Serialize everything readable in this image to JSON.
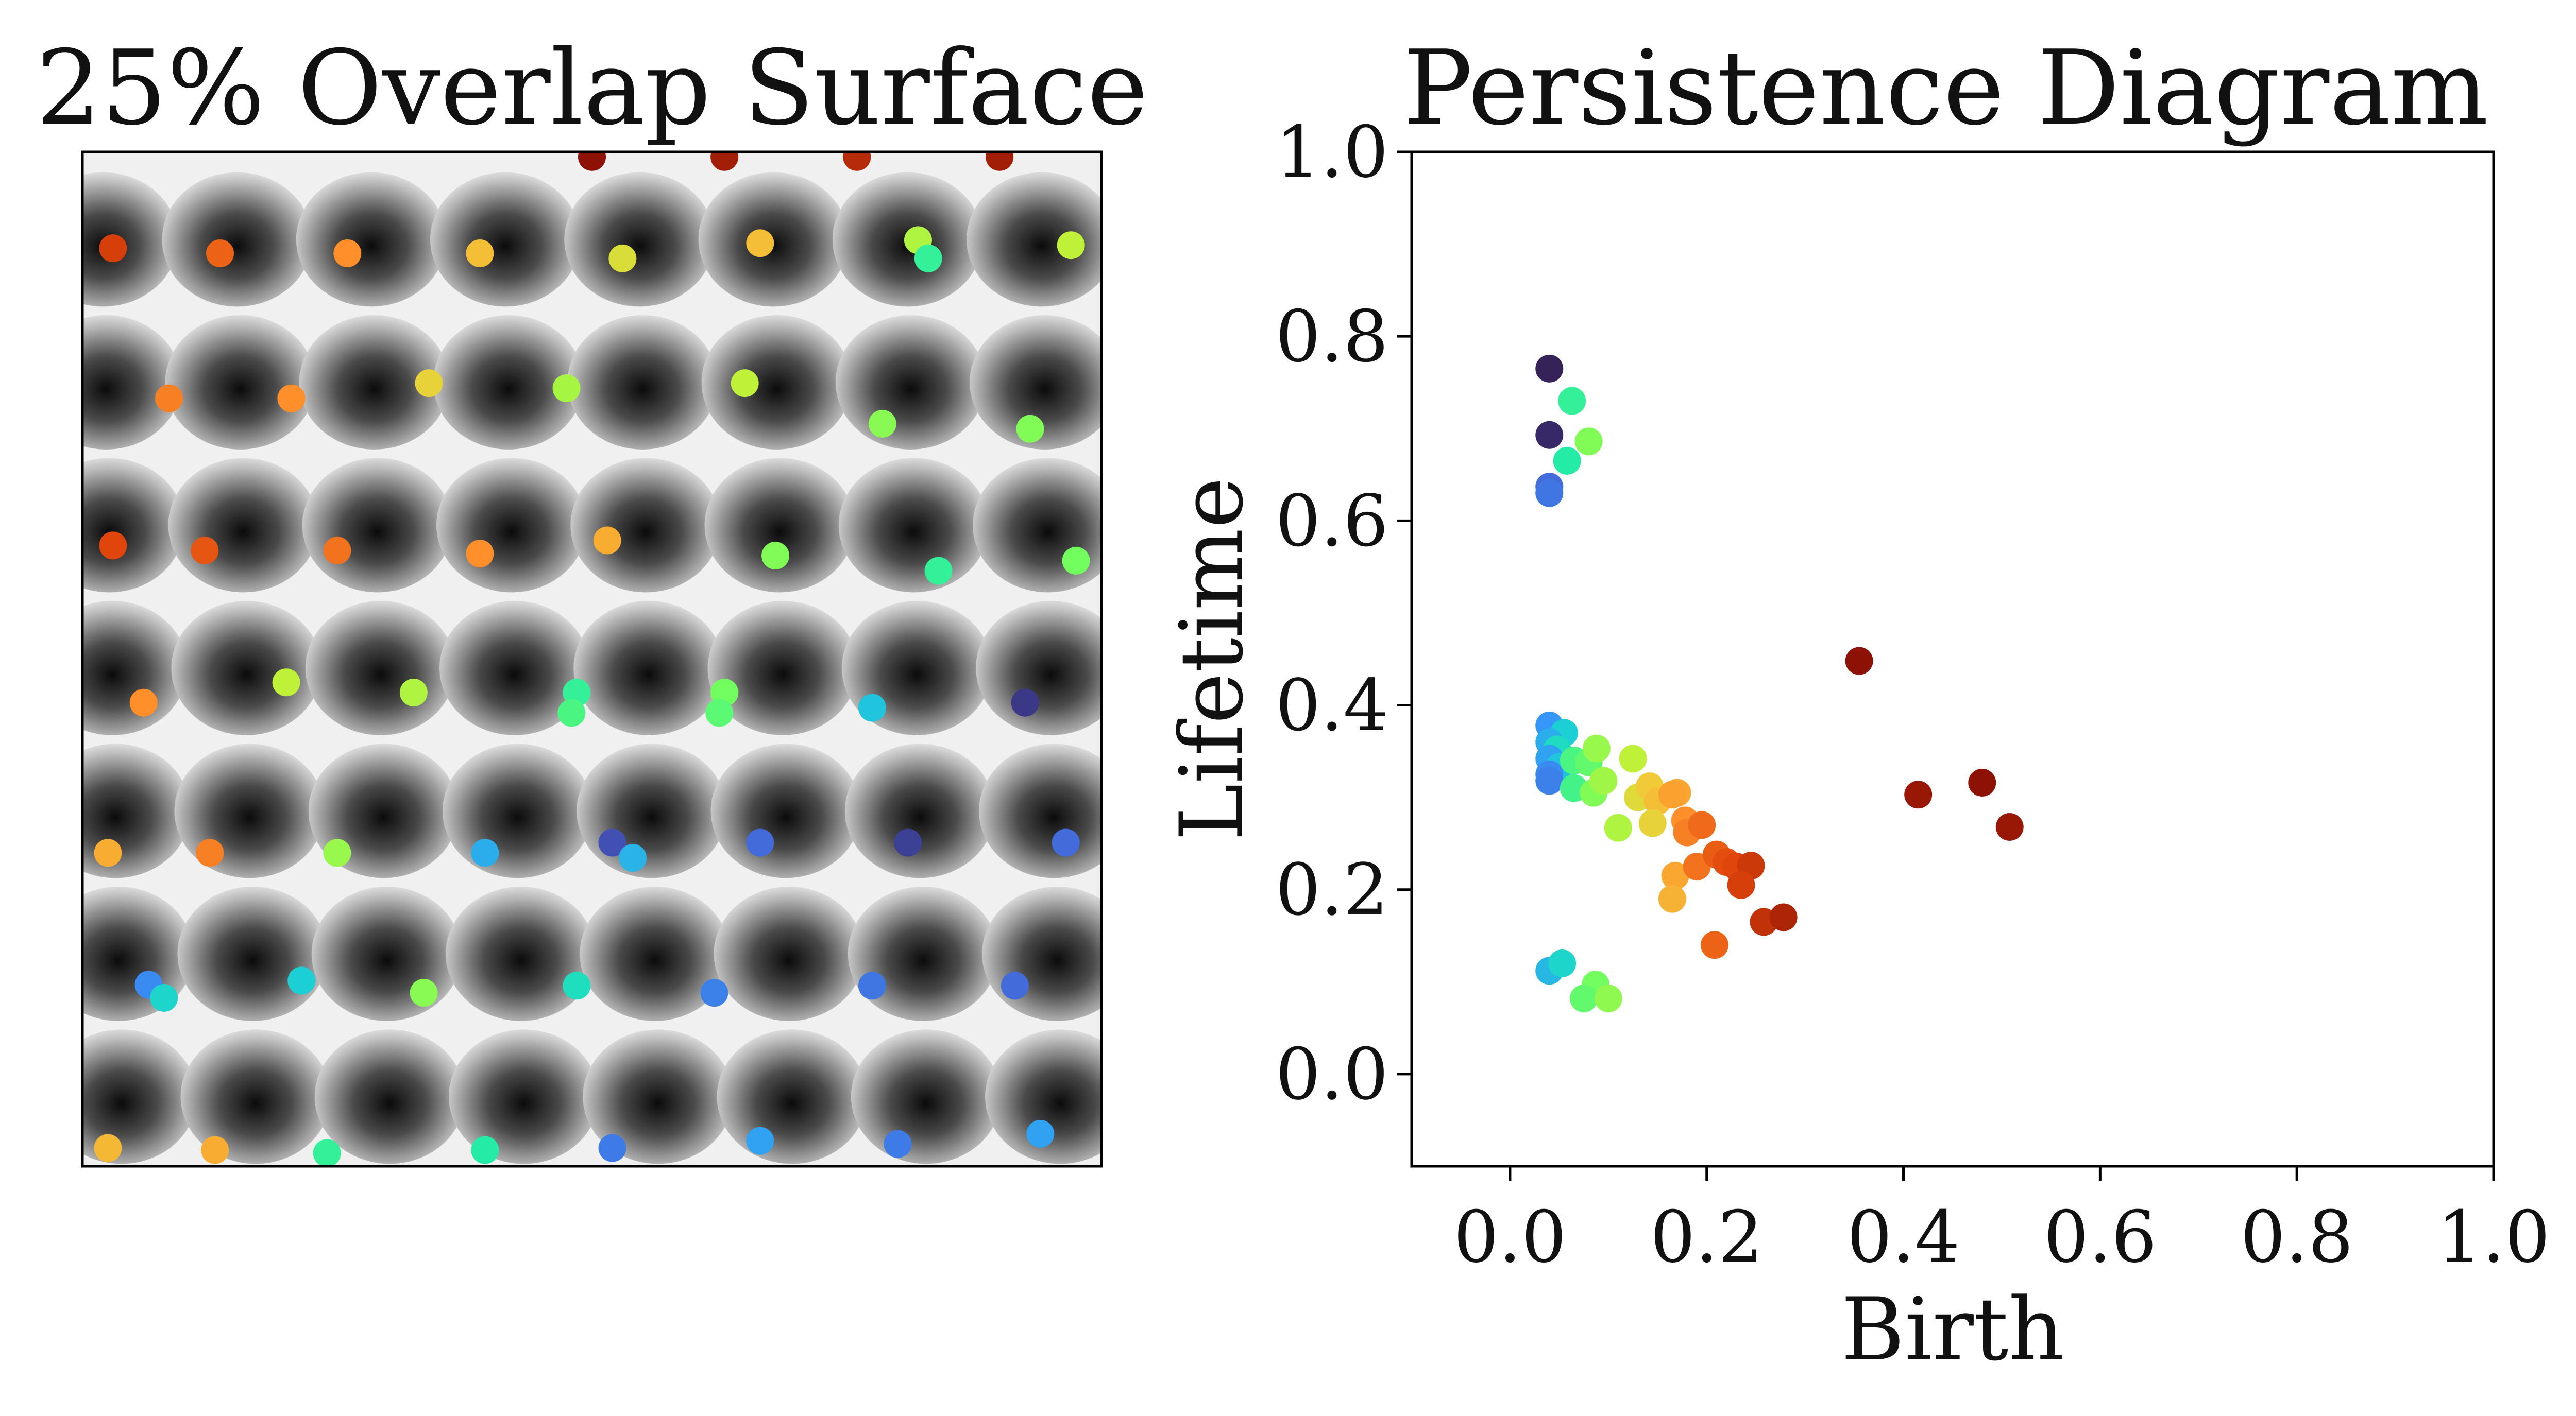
{
  "chart_data": [
    {
      "type": "image",
      "title": "25% Overlap Surface",
      "colormap": "turbo",
      "grid": {
        "rows": 8,
        "columns": 8,
        "image_range": [
          0,
          1
        ]
      },
      "points": [
        {
          "x": 0.5,
          "y": 0.995,
          "v": 0.98
        },
        {
          "x": 0.63,
          "y": 0.995,
          "v": 0.96
        },
        {
          "x": 0.76,
          "y": 0.995,
          "v": 0.94
        },
        {
          "x": 0.9,
          "y": 0.995,
          "v": 0.96
        },
        {
          "x": 0.03,
          "y": 0.905,
          "v": 0.91
        },
        {
          "x": 0.135,
          "y": 0.9,
          "v": 0.86
        },
        {
          "x": 0.26,
          "y": 0.9,
          "v": 0.8
        },
        {
          "x": 0.39,
          "y": 0.9,
          "v": 0.72
        },
        {
          "x": 0.53,
          "y": 0.895,
          "v": 0.65
        },
        {
          "x": 0.665,
          "y": 0.91,
          "v": 0.72
        },
        {
          "x": 0.82,
          "y": 0.913,
          "v": 0.58
        },
        {
          "x": 0.83,
          "y": 0.895,
          "v": 0.42
        },
        {
          "x": 0.97,
          "y": 0.908,
          "v": 0.6
        },
        {
          "x": 0.085,
          "y": 0.757,
          "v": 0.82
        },
        {
          "x": 0.205,
          "y": 0.757,
          "v": 0.8
        },
        {
          "x": 0.34,
          "y": 0.772,
          "v": 0.68
        },
        {
          "x": 0.475,
          "y": 0.767,
          "v": 0.57
        },
        {
          "x": 0.65,
          "y": 0.772,
          "v": 0.6
        },
        {
          "x": 0.785,
          "y": 0.732,
          "v": 0.53
        },
        {
          "x": 0.93,
          "y": 0.727,
          "v": 0.52
        },
        {
          "x": 0.03,
          "y": 0.612,
          "v": 0.9
        },
        {
          "x": 0.12,
          "y": 0.607,
          "v": 0.88
        },
        {
          "x": 0.25,
          "y": 0.607,
          "v": 0.84
        },
        {
          "x": 0.39,
          "y": 0.604,
          "v": 0.8
        },
        {
          "x": 0.515,
          "y": 0.617,
          "v": 0.75
        },
        {
          "x": 0.68,
          "y": 0.602,
          "v": 0.52
        },
        {
          "x": 0.84,
          "y": 0.587,
          "v": 0.42
        },
        {
          "x": 0.975,
          "y": 0.597,
          "v": 0.5
        },
        {
          "x": 0.06,
          "y": 0.457,
          "v": 0.8
        },
        {
          "x": 0.2,
          "y": 0.477,
          "v": 0.6
        },
        {
          "x": 0.325,
          "y": 0.467,
          "v": 0.58
        },
        {
          "x": 0.485,
          "y": 0.467,
          "v": 0.42
        },
        {
          "x": 0.48,
          "y": 0.447,
          "v": 0.45
        },
        {
          "x": 0.63,
          "y": 0.467,
          "v": 0.5
        },
        {
          "x": 0.625,
          "y": 0.447,
          "v": 0.47
        },
        {
          "x": 0.775,
          "y": 0.452,
          "v": 0.28
        },
        {
          "x": 0.925,
          "y": 0.457,
          "v": 0.05
        },
        {
          "x": 0.025,
          "y": 0.309,
          "v": 0.75
        },
        {
          "x": 0.125,
          "y": 0.309,
          "v": 0.82
        },
        {
          "x": 0.25,
          "y": 0.309,
          "v": 0.55
        },
        {
          "x": 0.395,
          "y": 0.309,
          "v": 0.24
        },
        {
          "x": 0.52,
          "y": 0.319,
          "v": 0.08
        },
        {
          "x": 0.54,
          "y": 0.304,
          "v": 0.25
        },
        {
          "x": 0.665,
          "y": 0.319,
          "v": 0.12
        },
        {
          "x": 0.81,
          "y": 0.319,
          "v": 0.06
        },
        {
          "x": 0.965,
          "y": 0.319,
          "v": 0.12
        },
        {
          "x": 0.065,
          "y": 0.179,
          "v": 0.18
        },
        {
          "x": 0.08,
          "y": 0.166,
          "v": 0.32
        },
        {
          "x": 0.215,
          "y": 0.183,
          "v": 0.3
        },
        {
          "x": 0.335,
          "y": 0.171,
          "v": 0.53
        },
        {
          "x": 0.485,
          "y": 0.178,
          "v": 0.35
        },
        {
          "x": 0.62,
          "y": 0.171,
          "v": 0.16
        },
        {
          "x": 0.775,
          "y": 0.178,
          "v": 0.14
        },
        {
          "x": 0.915,
          "y": 0.178,
          "v": 0.12
        },
        {
          "x": 0.025,
          "y": 0.018,
          "v": 0.73
        },
        {
          "x": 0.13,
          "y": 0.016,
          "v": 0.75
        },
        {
          "x": 0.24,
          "y": 0.013,
          "v": 0.42
        },
        {
          "x": 0.395,
          "y": 0.016,
          "v": 0.4
        },
        {
          "x": 0.52,
          "y": 0.018,
          "v": 0.15
        },
        {
          "x": 0.665,
          "y": 0.025,
          "v": 0.22
        },
        {
          "x": 0.8,
          "y": 0.022,
          "v": 0.15
        },
        {
          "x": 0.94,
          "y": 0.032,
          "v": 0.22
        }
      ]
    },
    {
      "type": "scatter",
      "title": "Persistence Diagram",
      "xlabel": "Birth",
      "ylabel": "Lifetime",
      "xlim": [
        -0.1,
        1.0
      ],
      "ylim": [
        -0.1,
        1.0
      ],
      "xticks": [
        "0.0",
        "0.2",
        "0.4",
        "0.6",
        "0.8",
        "1.0"
      ],
      "yticks": [
        "0.0",
        "0.2",
        "0.4",
        "0.6",
        "0.8",
        "1.0"
      ],
      "colormap": "turbo",
      "points": [
        {
          "x": 0.04,
          "y": 0.765,
          "c": 0.02
        },
        {
          "x": 0.063,
          "y": 0.73,
          "c": 0.42
        },
        {
          "x": 0.04,
          "y": 0.693,
          "c": 0.03
        },
        {
          "x": 0.08,
          "y": 0.686,
          "c": 0.52
        },
        {
          "x": 0.058,
          "y": 0.665,
          "c": 0.4
        },
        {
          "x": 0.04,
          "y": 0.637,
          "c": 0.12
        },
        {
          "x": 0.04,
          "y": 0.63,
          "c": 0.14
        },
        {
          "x": 0.355,
          "y": 0.448,
          "c": 0.98
        },
        {
          "x": 0.415,
          "y": 0.303,
          "c": 0.97
        },
        {
          "x": 0.48,
          "y": 0.316,
          "c": 0.98
        },
        {
          "x": 0.508,
          "y": 0.268,
          "c": 0.97
        },
        {
          "x": 0.04,
          "y": 0.378,
          "c": 0.2
        },
        {
          "x": 0.055,
          "y": 0.37,
          "c": 0.3
        },
        {
          "x": 0.04,
          "y": 0.36,
          "c": 0.24
        },
        {
          "x": 0.048,
          "y": 0.352,
          "c": 0.34
        },
        {
          "x": 0.04,
          "y": 0.342,
          "c": 0.22
        },
        {
          "x": 0.05,
          "y": 0.333,
          "c": 0.28
        },
        {
          "x": 0.04,
          "y": 0.325,
          "c": 0.18
        },
        {
          "x": 0.04,
          "y": 0.318,
          "c": 0.16
        },
        {
          "x": 0.065,
          "y": 0.34,
          "c": 0.45
        },
        {
          "x": 0.08,
          "y": 0.338,
          "c": 0.48
        },
        {
          "x": 0.088,
          "y": 0.353,
          "c": 0.55
        },
        {
          "x": 0.065,
          "y": 0.31,
          "c": 0.44
        },
        {
          "x": 0.085,
          "y": 0.305,
          "c": 0.52
        },
        {
          "x": 0.095,
          "y": 0.318,
          "c": 0.56
        },
        {
          "x": 0.125,
          "y": 0.342,
          "c": 0.6
        },
        {
          "x": 0.13,
          "y": 0.3,
          "c": 0.66
        },
        {
          "x": 0.142,
          "y": 0.312,
          "c": 0.7
        },
        {
          "x": 0.15,
          "y": 0.296,
          "c": 0.72
        },
        {
          "x": 0.145,
          "y": 0.272,
          "c": 0.68
        },
        {
          "x": 0.11,
          "y": 0.267,
          "c": 0.58
        },
        {
          "x": 0.17,
          "y": 0.305,
          "c": 0.76
        },
        {
          "x": 0.165,
          "y": 0.303,
          "c": 0.77
        },
        {
          "x": 0.178,
          "y": 0.275,
          "c": 0.8
        },
        {
          "x": 0.18,
          "y": 0.262,
          "c": 0.82
        },
        {
          "x": 0.195,
          "y": 0.27,
          "c": 0.85
        },
        {
          "x": 0.168,
          "y": 0.215,
          "c": 0.76
        },
        {
          "x": 0.165,
          "y": 0.19,
          "c": 0.74
        },
        {
          "x": 0.19,
          "y": 0.225,
          "c": 0.84
        },
        {
          "x": 0.21,
          "y": 0.238,
          "c": 0.87
        },
        {
          "x": 0.22,
          "y": 0.23,
          "c": 0.89
        },
        {
          "x": 0.23,
          "y": 0.225,
          "c": 0.9
        },
        {
          "x": 0.245,
          "y": 0.226,
          "c": 0.92
        },
        {
          "x": 0.235,
          "y": 0.205,
          "c": 0.91
        },
        {
          "x": 0.258,
          "y": 0.165,
          "c": 0.93
        },
        {
          "x": 0.278,
          "y": 0.17,
          "c": 0.95
        },
        {
          "x": 0.208,
          "y": 0.14,
          "c": 0.86
        },
        {
          "x": 0.04,
          "y": 0.112,
          "c": 0.26
        },
        {
          "x": 0.053,
          "y": 0.12,
          "c": 0.32
        },
        {
          "x": 0.087,
          "y": 0.097,
          "c": 0.5
        },
        {
          "x": 0.075,
          "y": 0.082,
          "c": 0.48
        },
        {
          "x": 0.1,
          "y": 0.082,
          "c": 0.54
        }
      ]
    }
  ]
}
